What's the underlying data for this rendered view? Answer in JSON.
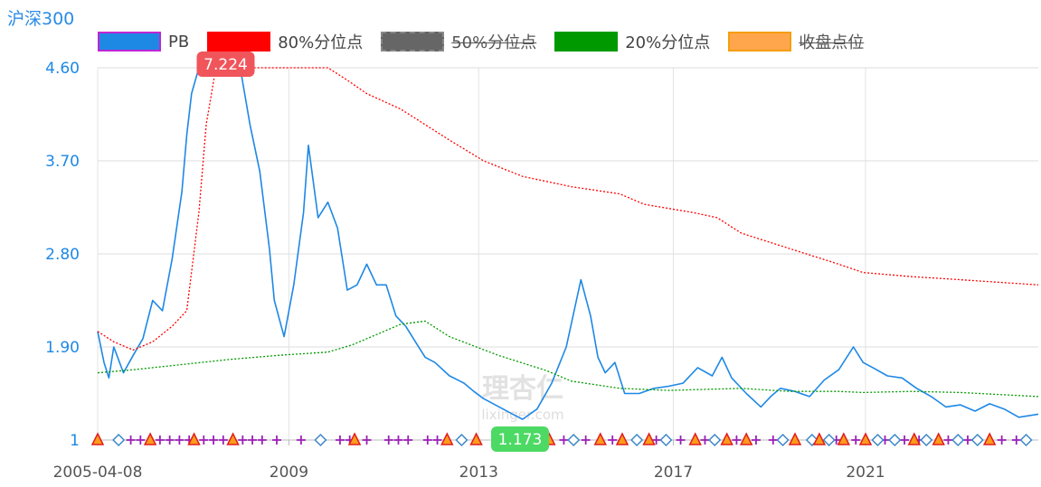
{
  "title": "沪深300",
  "watermark": {
    "cn": "理杏仁",
    "en": "lixinger.com"
  },
  "legend": [
    {
      "label": "PB",
      "swatch_color": "#1e88e5",
      "swatch_border": "#c026d3",
      "struck": false
    },
    {
      "label": "80%分位点",
      "swatch_color": "#ff0000",
      "swatch_border": "#ff0000",
      "struck": false
    },
    {
      "label": "50%分位点",
      "swatch_color": "#666666",
      "swatch_border": "#888888",
      "struck": true
    },
    {
      "label": "20%分位点",
      "swatch_color": "#009900",
      "swatch_border": "#009900",
      "struck": false
    },
    {
      "label": "收盘点位",
      "swatch_color": "#ffa64d",
      "swatch_border": "#f59e0b",
      "struck": true
    }
  ],
  "chart_data": {
    "type": "line",
    "x_ticks": [
      "2005-04-08",
      "2009",
      "2013",
      "2017",
      "2021"
    ],
    "y_ticks": [
      "1",
      "1.90",
      "2.80",
      "3.70",
      "4.60"
    ],
    "y_tick_values": [
      1,
      1.9,
      2.8,
      3.7,
      4.6
    ],
    "ylim": [
      1,
      4.6
    ],
    "xlim": [
      2005.27,
      2024.6
    ],
    "grid": true,
    "legend_position": "top",
    "y_axis_color": "#1e88e5",
    "annotations": {
      "max": {
        "label": "7.224",
        "x": 2007.9,
        "color": "#f0555b"
      },
      "min": {
        "label": "1.173",
        "x": 2013.95,
        "color": "#4cd964"
      }
    },
    "series": [
      {
        "name": "PB",
        "color": "#1e88e5",
        "x": [
          2005.27,
          2005.4,
          2005.5,
          2005.6,
          2005.8,
          2006.0,
          2006.2,
          2006.4,
          2006.6,
          2006.8,
          2007.0,
          2007.1,
          2007.2,
          2007.35,
          2007.5,
          2007.7,
          2007.9,
          2008.05,
          2008.2,
          2008.4,
          2008.6,
          2008.8,
          2008.9,
          2009.1,
          2009.3,
          2009.5,
          2009.6,
          2009.8,
          2010.0,
          2010.2,
          2010.4,
          2010.6,
          2010.8,
          2011.0,
          2011.2,
          2011.4,
          2011.6,
          2011.8,
          2012.0,
          2012.2,
          2012.5,
          2012.8,
          2013.0,
          2013.2,
          2013.4,
          2013.6,
          2013.8,
          2014.0,
          2014.3,
          2014.6,
          2014.9,
          2015.2,
          2015.4,
          2015.55,
          2015.7,
          2015.9,
          2016.1,
          2016.4,
          2016.7,
          2017.0,
          2017.3,
          2017.6,
          2017.9,
          2018.1,
          2018.3,
          2018.6,
          2018.9,
          2019.1,
          2019.3,
          2019.6,
          2019.9,
          2020.2,
          2020.5,
          2020.8,
          2021.0,
          2021.2,
          2021.5,
          2021.8,
          2022.1,
          2022.4,
          2022.7,
          2023.0,
          2023.3,
          2023.6,
          2023.9,
          2024.2,
          2024.6
        ],
        "y": [
          2.05,
          1.75,
          1.6,
          1.9,
          1.65,
          1.82,
          1.98,
          2.35,
          2.25,
          2.75,
          3.4,
          3.95,
          4.35,
          4.6,
          4.6,
          4.6,
          4.6,
          4.6,
          4.6,
          4.05,
          3.6,
          2.85,
          2.35,
          2.0,
          2.5,
          3.2,
          3.85,
          3.15,
          3.3,
          3.05,
          2.45,
          2.5,
          2.7,
          2.5,
          2.5,
          2.2,
          2.1,
          1.95,
          1.8,
          1.75,
          1.62,
          1.55,
          1.47,
          1.4,
          1.35,
          1.3,
          1.25,
          1.2,
          1.3,
          1.55,
          1.9,
          2.55,
          2.2,
          1.8,
          1.65,
          1.75,
          1.45,
          1.45,
          1.5,
          1.52,
          1.55,
          1.7,
          1.62,
          1.8,
          1.6,
          1.45,
          1.32,
          1.42,
          1.5,
          1.47,
          1.42,
          1.58,
          1.68,
          1.9,
          1.75,
          1.7,
          1.62,
          1.6,
          1.5,
          1.42,
          1.32,
          1.34,
          1.28,
          1.35,
          1.3,
          1.22,
          1.25
        ]
      },
      {
        "name": "80%分位点",
        "color": "#ff0000",
        "x": [
          2005.27,
          2005.6,
          2006.0,
          2006.4,
          2006.8,
          2007.1,
          2007.35,
          2007.5,
          2007.7,
          2008.0,
          2009.0,
          2010.0,
          2010.4,
          2010.8,
          2011.5,
          2012.5,
          2013.2,
          2014.0,
          2015.0,
          2016.0,
          2016.5,
          2017.5,
          2018.0,
          2018.5,
          2019.5,
          2020.5,
          2021.0,
          2022.0,
          2023.0,
          2024.6
        ],
        "y": [
          2.05,
          1.95,
          1.87,
          1.95,
          2.1,
          2.25,
          3.2,
          4.05,
          4.6,
          4.6,
          4.6,
          4.6,
          4.48,
          4.35,
          4.2,
          3.9,
          3.7,
          3.55,
          3.45,
          3.38,
          3.28,
          3.2,
          3.15,
          3.0,
          2.85,
          2.7,
          2.62,
          2.58,
          2.55,
          2.5
        ]
      },
      {
        "name": "20%分位点",
        "color": "#009900",
        "x": [
          2005.27,
          2006.0,
          2007.0,
          2008.0,
          2009.0,
          2010.0,
          2010.5,
          2011.0,
          2011.5,
          2012.0,
          2012.5,
          2013.5,
          2014.5,
          2015.0,
          2016.0,
          2017.0,
          2018.5,
          2019.5,
          2020.5,
          2021.0,
          2022.0,
          2023.0,
          2024.6
        ],
        "y": [
          1.65,
          1.68,
          1.73,
          1.78,
          1.82,
          1.85,
          1.92,
          2.02,
          2.12,
          2.15,
          2.0,
          1.82,
          1.67,
          1.57,
          1.5,
          1.48,
          1.5,
          1.47,
          1.47,
          1.46,
          1.47,
          1.46,
          1.42
        ]
      }
    ],
    "markers": {
      "triangle_x": [
        2005.27,
        2006.35,
        2007.25,
        2008.05,
        2010.55,
        2012.45,
        2013.05,
        2014.55,
        2015.6,
        2016.05,
        2016.6,
        2017.55,
        2018.2,
        2018.6,
        2019.6,
        2020.1,
        2020.6,
        2021.05,
        2022.05,
        2022.55,
        2023.6
      ],
      "diamond_x": [
        2005.7,
        2009.85,
        2012.75,
        2015.05,
        2016.35,
        2016.95,
        2017.95,
        2019.35,
        2019.95,
        2020.3,
        2021.3,
        2021.65,
        2022.3,
        2022.95,
        2023.35,
        2024.35
      ],
      "plus_x": [
        2005.95,
        2006.15,
        2006.55,
        2006.75,
        2006.95,
        2007.15,
        2007.45,
        2007.65,
        2007.85,
        2008.25,
        2008.45,
        2008.65,
        2008.95,
        2009.45,
        2010.25,
        2010.45,
        2010.8,
        2011.25,
        2011.45,
        2011.65,
        2012.05,
        2012.25,
        2013.45,
        2013.75,
        2014.15,
        2014.85,
        2015.3,
        2015.85,
        2016.75,
        2017.25,
        2017.75,
        2018.4,
        2018.8,
        2019.15,
        2020.45,
        2020.85,
        2021.45,
        2021.85,
        2022.15,
        2022.75,
        2023.15,
        2023.85,
        2024.15
      ]
    }
  }
}
